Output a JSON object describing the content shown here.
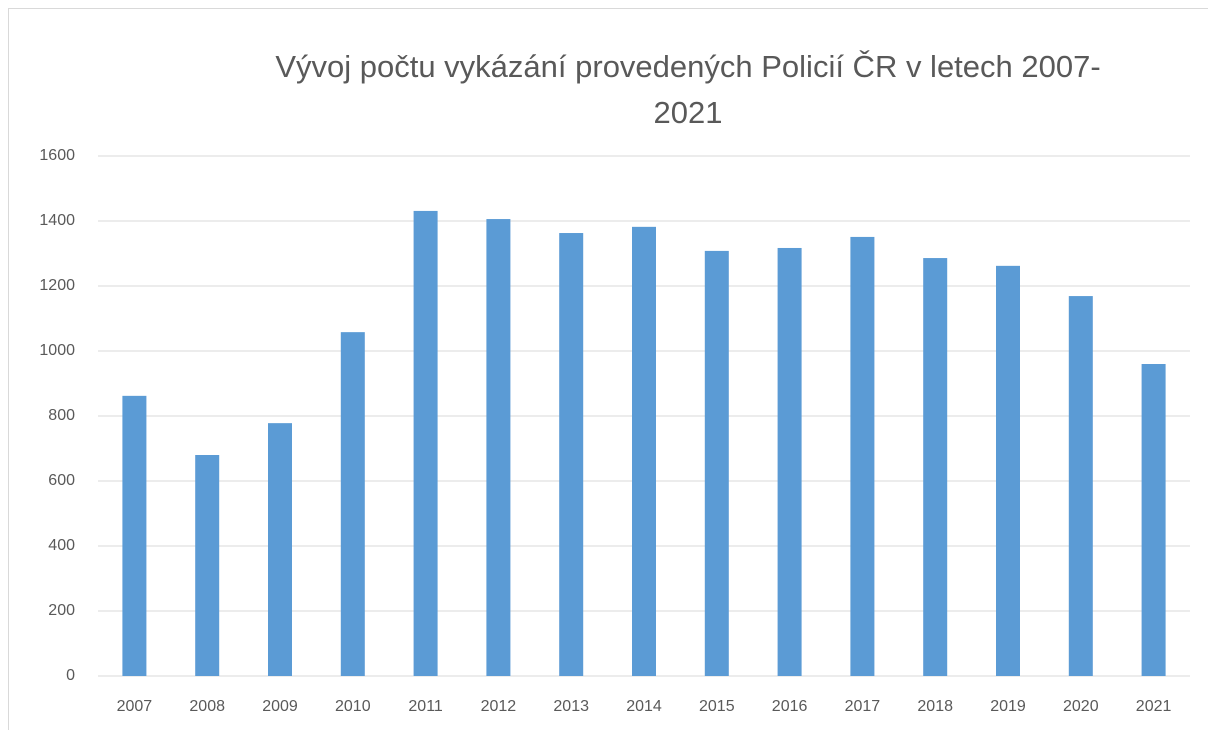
{
  "chart_data": {
    "type": "bar",
    "title": "Vývoj počtu vykázání provedených Policií ČR v letech 2007-2021",
    "categories": [
      "2007",
      "2008",
      "2009",
      "2010",
      "2011",
      "2012",
      "2013",
      "2014",
      "2015",
      "2016",
      "2017",
      "2018",
      "2019",
      "2020",
      "2021"
    ],
    "values": [
      862,
      680,
      778,
      1058,
      1431,
      1406,
      1363,
      1382,
      1308,
      1317,
      1351,
      1286,
      1262,
      1169,
      960
    ],
    "color": "#5b9bd5",
    "ylim": [
      0,
      1600
    ],
    "yticks": [
      0,
      200,
      400,
      600,
      800,
      1000,
      1200,
      1400,
      1600
    ],
    "grid": true
  }
}
